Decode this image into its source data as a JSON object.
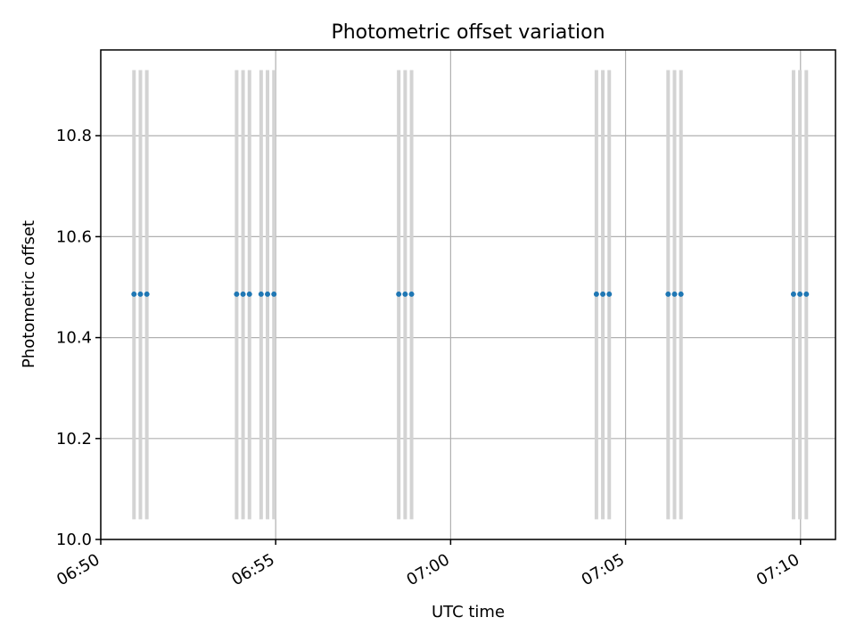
{
  "chart_data": {
    "type": "scatter",
    "title": "Photometric offset variation",
    "xlabel": "UTC time",
    "ylabel": "Photometric offset",
    "x_tick_labels": [
      "06:50",
      "06:55",
      "07:00",
      "07:05",
      "07:10"
    ],
    "x_tick_values": [
      "06:50",
      "06:55",
      "07:00",
      "07:05",
      "07:10"
    ],
    "y_tick_labels": [
      "10.0",
      "10.2",
      "10.4",
      "10.6",
      "10.8"
    ],
    "y_tick_values": [
      10.0,
      10.2,
      10.4,
      10.6,
      10.8
    ],
    "xlim": [
      "06:50:00",
      "07:11:00"
    ],
    "ylim": [
      10.0,
      10.97
    ],
    "grid": true,
    "point_color": "#1f77b4",
    "bar_color": "#d3d3d3",
    "bar_range": [
      10.04,
      10.93
    ],
    "series": [
      {
        "x": [
          "06:50:57",
          "06:51:08",
          "06:51:19",
          "06:53:53",
          "06:54:04",
          "06:54:15",
          "06:54:35",
          "06:54:46",
          "06:54:57",
          "06:58:31",
          "06:58:42",
          "06:58:53",
          "07:04:10",
          "07:04:21",
          "07:04:32",
          "07:06:13",
          "07:06:24",
          "07:06:35",
          "07:09:48",
          "07:09:59",
          "07:10:10"
        ],
        "y": [
          10.486,
          10.486,
          10.486,
          10.486,
          10.486,
          10.486,
          10.486,
          10.486,
          10.486,
          10.486,
          10.486,
          10.486,
          10.486,
          10.486,
          10.486,
          10.486,
          10.486,
          10.486,
          10.486,
          10.486,
          10.486
        ]
      }
    ]
  }
}
